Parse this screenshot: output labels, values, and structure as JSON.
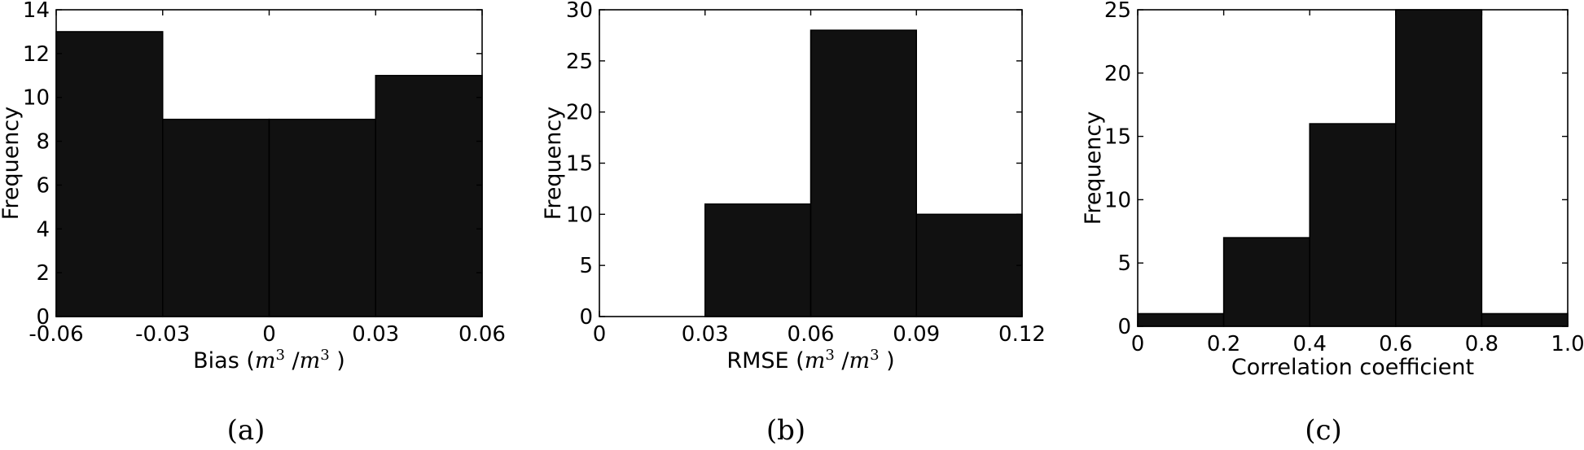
{
  "chart_data": [
    {
      "type": "bar",
      "subplot_label": "(a)",
      "xlabel": "Bias ($m^3$ /$m^3$ )",
      "ylabel": "Frequency",
      "xlim": [
        -0.06,
        0.06
      ],
      "ylim": [
        0,
        14
      ],
      "xticks": [
        -0.06,
        -0.03,
        0,
        0.03,
        0.06
      ],
      "xtick_labels": [
        "-0.06",
        "-0.03",
        "0",
        "0.03",
        "0.06"
      ],
      "yticks": [
        0,
        2,
        4,
        6,
        8,
        10,
        12,
        14
      ],
      "bin_edges": [
        -0.06,
        -0.03,
        0,
        0.03,
        0.06
      ],
      "values": [
        13,
        9,
        9,
        11
      ]
    },
    {
      "type": "bar",
      "subplot_label": "(b)",
      "xlabel": "RMSE ($m^3$ /$m^3$ )",
      "ylabel": "Frequency",
      "xlim": [
        0,
        0.12
      ],
      "ylim": [
        0,
        30
      ],
      "xticks": [
        0,
        0.03,
        0.06,
        0.09,
        0.12
      ],
      "xtick_labels": [
        "0",
        "0.03",
        "0.06",
        "0.09",
        "0.12"
      ],
      "yticks": [
        0,
        5,
        10,
        15,
        20,
        25,
        30
      ],
      "bin_edges": [
        0,
        0.03,
        0.06,
        0.09,
        0.12
      ],
      "values": [
        0,
        11,
        28,
        10
      ]
    },
    {
      "type": "bar",
      "subplot_label": "(c)",
      "xlabel": "Correlation coefficient",
      "ylabel": "Frequency",
      "xlim": [
        0,
        1.0
      ],
      "ylim": [
        0,
        25
      ],
      "xticks": [
        0,
        0.2,
        0.4,
        0.6,
        0.8,
        1.0
      ],
      "xtick_labels": [
        "0",
        "0.2",
        "0.4",
        "0.6",
        "0.8",
        "1.0"
      ],
      "yticks": [
        0,
        5,
        10,
        15,
        20,
        25
      ],
      "bin_edges": [
        0,
        0.2,
        0.4,
        0.6,
        0.8,
        1.0
      ],
      "values": [
        1,
        7,
        16,
        25,
        1
      ]
    }
  ]
}
